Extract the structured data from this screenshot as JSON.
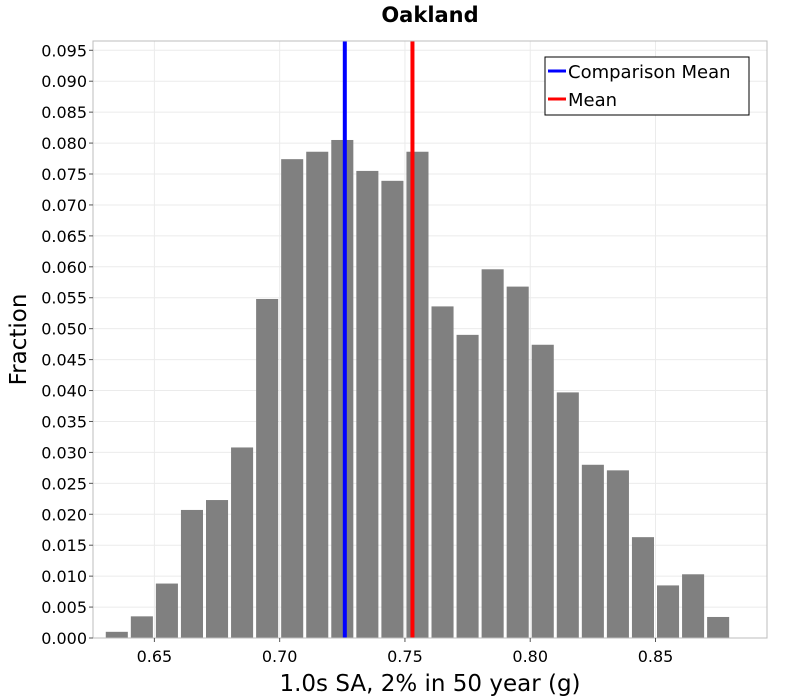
{
  "chart_data": {
    "type": "bar",
    "title": "Oakland",
    "xlabel": "1.0s SA, 2% in 50 year (g)",
    "ylabel": "Fraction",
    "xlim": [
      0.6255,
      0.8945
    ],
    "ylim": [
      0.0,
      0.0965
    ],
    "bin_width": 0.01,
    "bin_centers": [
      0.635,
      0.645,
      0.655,
      0.665,
      0.675,
      0.685,
      0.695,
      0.705,
      0.715,
      0.725,
      0.735,
      0.745,
      0.755,
      0.765,
      0.775,
      0.785,
      0.795,
      0.805,
      0.815,
      0.825,
      0.835,
      0.845,
      0.855,
      0.865,
      0.875
    ],
    "values": [
      0.001,
      0.0035,
      0.0088,
      0.0207,
      0.0223,
      0.0308,
      0.0548,
      0.0774,
      0.0786,
      0.0805,
      0.0755,
      0.0739,
      0.0786,
      0.0536,
      0.049,
      0.0596,
      0.0568,
      0.0474,
      0.0397,
      0.028,
      0.0271,
      0.0163,
      0.0085,
      0.0103,
      0.0034
    ],
    "bar_color": "#808080",
    "x_ticks": [
      "0.65",
      "0.70",
      "0.75",
      "0.80",
      "0.85"
    ],
    "x_tick_values": [
      0.65,
      0.7,
      0.75,
      0.8,
      0.85
    ],
    "y_ticks": [
      "0.000",
      "0.005",
      "0.010",
      "0.015",
      "0.020",
      "0.025",
      "0.030",
      "0.035",
      "0.040",
      "0.045",
      "0.050",
      "0.055",
      "0.060",
      "0.065",
      "0.070",
      "0.075",
      "0.080",
      "0.085",
      "0.090",
      "0.095"
    ],
    "y_tick_values": [
      0.0,
      0.005,
      0.01,
      0.015,
      0.02,
      0.025,
      0.03,
      0.035,
      0.04,
      0.045,
      0.05,
      0.055,
      0.06,
      0.065,
      0.07,
      0.075,
      0.08,
      0.085,
      0.09,
      0.095
    ],
    "grid": true,
    "vlines": [
      {
        "name": "Comparison Mean",
        "x": 0.726,
        "color": "#0000ff"
      },
      {
        "name": "Mean",
        "x": 0.753,
        "color": "#ff0000"
      }
    ],
    "legend": {
      "position": "top-right",
      "entries": [
        {
          "label": "Comparison Mean",
          "color": "#0000ff"
        },
        {
          "label": "Mean",
          "color": "#ff0000"
        }
      ]
    }
  }
}
